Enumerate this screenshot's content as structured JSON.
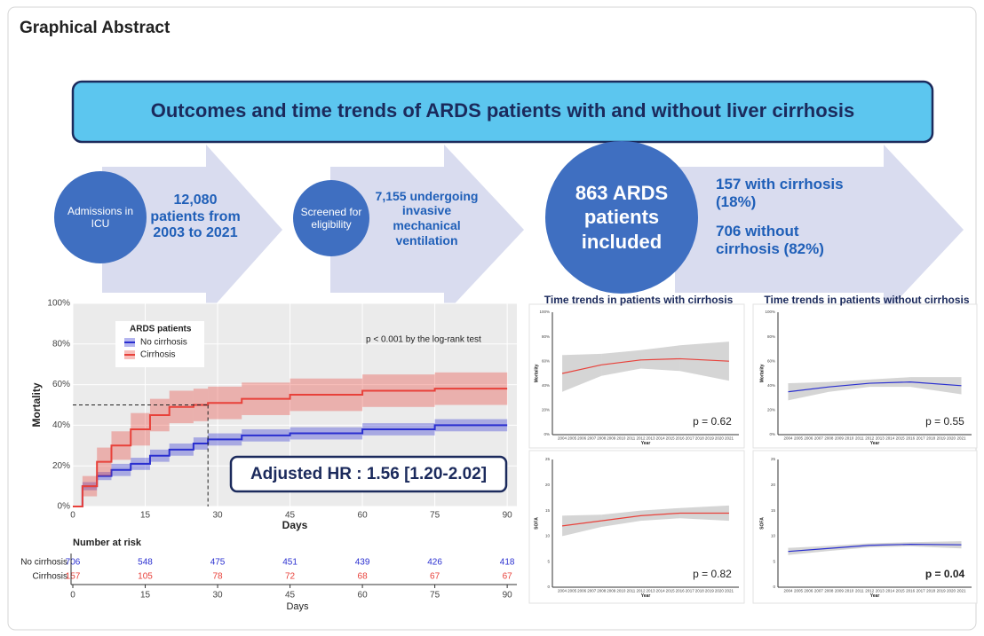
{
  "header": {
    "title": "Graphical Abstract"
  },
  "banner": {
    "title": "Outcomes and time trends of ARDS patients with and without liver cirrhosis"
  },
  "steps": [
    {
      "circle": "Admissions in ICU",
      "text": "12,080 patients from 2003 to 2021"
    },
    {
      "circle": "Screened for eligibility",
      "text": "7,155 undergoing invasive mechanical ventilation"
    },
    {
      "circle": "863 ARDS patients included",
      "items": [
        "157 with cirrhosis (18%)",
        "706 without cirrhosis (82%)"
      ]
    }
  ],
  "chart_data": [
    {
      "type": "line",
      "step": true,
      "x_label": "Days",
      "y_label": "Mortality",
      "x": [
        0,
        2,
        5,
        8,
        12,
        16,
        20,
        25,
        28,
        35,
        45,
        60,
        75,
        90
      ],
      "xlim": [
        0,
        92
      ],
      "ylim": [
        0,
        100
      ],
      "xticks": [
        0,
        15,
        30,
        45,
        60,
        75,
        90
      ],
      "yticks": [
        {
          "value": 0,
          "label": "0%"
        },
        {
          "value": 20,
          "label": "20%"
        },
        {
          "value": 40,
          "label": "40%"
        },
        {
          "value": 60,
          "label": "60%"
        },
        {
          "value": 80,
          "label": "80%"
        },
        {
          "value": 100,
          "label": "100%"
        }
      ],
      "grid": true,
      "legend_title": "ARDS patients",
      "legend_position": "upper-left",
      "series": [
        {
          "name": "No cirrhosis",
          "color": "#2a2fd0",
          "values": [
            0,
            10,
            15,
            18,
            21,
            25,
            28,
            31,
            33,
            35,
            36,
            38,
            40,
            40
          ],
          "lower": [
            0,
            8,
            13,
            15,
            18,
            22,
            25,
            28,
            30,
            32,
            33,
            35,
            37,
            37
          ],
          "upper": [
            0,
            12,
            17,
            21,
            24,
            28,
            31,
            34,
            36,
            38,
            39,
            41,
            43,
            43
          ]
        },
        {
          "name": "Cirrhosis",
          "color": "#e8413a",
          "values": [
            0,
            10,
            22,
            30,
            38,
            45,
            49,
            50,
            51,
            53,
            55,
            57,
            58,
            58
          ],
          "lower": [
            0,
            5,
            15,
            23,
            30,
            37,
            41,
            42,
            43,
            45,
            47,
            49,
            50,
            50
          ],
          "upper": [
            0,
            15,
            29,
            37,
            46,
            53,
            57,
            58,
            59,
            61,
            63,
            65,
            66,
            66
          ]
        }
      ],
      "median": {
        "x": 28,
        "y": 50
      },
      "annotation": "p < 0.001 by the log-rank test",
      "hazard_ratio": "Adjusted HR : 1.56 [1.20-2.02]",
      "risk_table": {
        "title": "Number at risk",
        "x_label": "Days",
        "rows": [
          {
            "name": "No cirrhosis",
            "values": [
              "706",
              "548",
              "475",
              "451",
              "439",
              "426",
              "418"
            ]
          },
          {
            "name": "Cirrhosis",
            "values": [
              "157",
              "105",
              "78",
              "72",
              "68",
              "67",
              "67"
            ]
          }
        ]
      }
    },
    {
      "type": "line",
      "title": "Time trends in patients with cirrhosis",
      "x_label": "Year",
      "y_label": "Mortality",
      "x": [
        2004,
        2008,
        2012,
        2016,
        2021
      ],
      "xlim": [
        2003,
        2022
      ],
      "ylim": [
        0,
        100
      ],
      "xticks": [
        2004,
        2005,
        2006,
        2007,
        2008,
        2009,
        2010,
        2011,
        2012,
        2013,
        2014,
        2015,
        2016,
        2017,
        2018,
        2019,
        2020,
        2021
      ],
      "yticks": [
        {
          "value": 0,
          "label": "0%"
        },
        {
          "value": 20,
          "label": "20%"
        },
        {
          "value": 40,
          "label": "40%"
        },
        {
          "value": 60,
          "label": "60%"
        },
        {
          "value": 80,
          "label": "80%"
        },
        {
          "value": 100,
          "label": "100%"
        }
      ],
      "series": [
        {
          "color": "#e8413a",
          "values": [
            50,
            57,
            61,
            62,
            60
          ],
          "lower": [
            35,
            48,
            54,
            52,
            44
          ],
          "upper": [
            65,
            66,
            69,
            73,
            76
          ]
        }
      ],
      "annotation": "p = 0.62"
    },
    {
      "type": "line",
      "title": "Time trends in patients without cirrhosis",
      "x_label": "Year",
      "y_label": "Mortality",
      "x": [
        2004,
        2008,
        2012,
        2016,
        2021
      ],
      "xlim": [
        2003,
        2022
      ],
      "ylim": [
        0,
        100
      ],
      "xticks": [
        2004,
        2005,
        2006,
        2007,
        2008,
        2009,
        2010,
        2011,
        2012,
        2013,
        2014,
        2015,
        2016,
        2017,
        2018,
        2019,
        2020,
        2021
      ],
      "yticks": [
        {
          "value": 0,
          "label": "0%"
        },
        {
          "value": 20,
          "label": "20%"
        },
        {
          "value": 40,
          "label": "40%"
        },
        {
          "value": 60,
          "label": "60%"
        },
        {
          "value": 80,
          "label": "80%"
        },
        {
          "value": 100,
          "label": "100%"
        }
      ],
      "series": [
        {
          "color": "#2a2fd0",
          "values": [
            35,
            39,
            42,
            43,
            40
          ],
          "lower": [
            28,
            35,
            39,
            39,
            33
          ],
          "upper": [
            42,
            43,
            45,
            47,
            47
          ]
        }
      ],
      "annotation": "p = 0.55"
    },
    {
      "type": "line",
      "x_label": "Year",
      "y_label": "SOFA",
      "x": [
        2004,
        2008,
        2012,
        2016,
        2021
      ],
      "xlim": [
        2003,
        2022
      ],
      "ylim": [
        0,
        25
      ],
      "xticks": [
        2004,
        2005,
        2006,
        2007,
        2008,
        2009,
        2010,
        2011,
        2012,
        2013,
        2014,
        2015,
        2016,
        2017,
        2018,
        2019,
        2020,
        2021
      ],
      "yticks": [
        0,
        5,
        10,
        15,
        20,
        25
      ],
      "series": [
        {
          "color": "#e8413a",
          "values": [
            12,
            13,
            14,
            14.5,
            14.5
          ],
          "lower": [
            10,
            11.8,
            13,
            13.5,
            13
          ],
          "upper": [
            14,
            14.2,
            15,
            15.5,
            16
          ]
        }
      ],
      "annotation": "p = 0.82"
    },
    {
      "type": "line",
      "x_label": "Year",
      "y_label": "SOFA",
      "x": [
        2004,
        2008,
        2012,
        2016,
        2021
      ],
      "xlim": [
        2003,
        2022
      ],
      "ylim": [
        0,
        25
      ],
      "xticks": [
        2004,
        2005,
        2006,
        2007,
        2008,
        2009,
        2010,
        2011,
        2012,
        2013,
        2014,
        2015,
        2016,
        2017,
        2018,
        2019,
        2020,
        2021
      ],
      "yticks": [
        0,
        5,
        10,
        15,
        20,
        25
      ],
      "series": [
        {
          "color": "#2a2fd0",
          "values": [
            7,
            7.6,
            8.2,
            8.4,
            8.3
          ],
          "lower": [
            6.3,
            7.1,
            7.8,
            8,
            7.6
          ],
          "upper": [
            7.7,
            8.1,
            8.6,
            8.8,
            9
          ]
        }
      ],
      "annotation": "p = 0.04",
      "annotation_bold": true
    }
  ]
}
